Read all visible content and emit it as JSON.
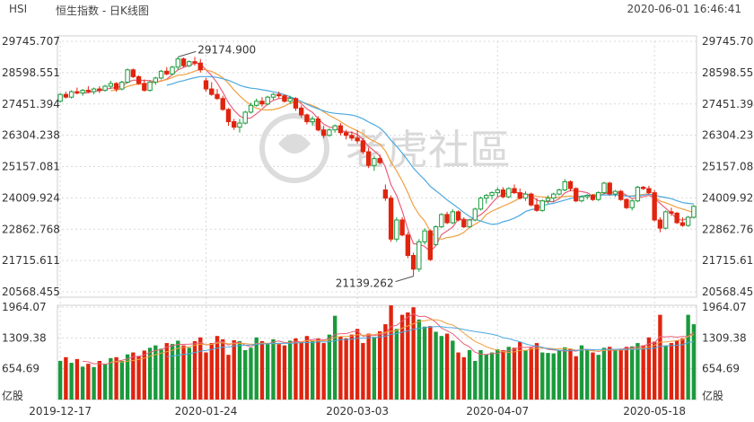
{
  "header": {
    "symbol": "HSI",
    "name": "恒生指数 - 日K线图",
    "timestamp": "2020-06-01 16:46:41"
  },
  "watermark": "老虎社區",
  "colors": {
    "up": "#1a9a3c",
    "down": "#e0240e",
    "ma5": "#e8607a",
    "ma10": "#f0a040",
    "ma20": "#4aa8e0",
    "grid": "#d8d8d8"
  },
  "chart_data": [
    {
      "type": "candlestick",
      "price_axis_labels": [
        "29745.707",
        "28598.551",
        "27451.394",
        "26304.238",
        "25157.081",
        "24009.924",
        "22862.768",
        "21715.611",
        "20568.455"
      ],
      "ylim": [
        20568.455,
        29745.707
      ],
      "date_labels": [
        "2019-12-17",
        "2020-01-24",
        "2020-03-03",
        "2020-04-07",
        "2020-05-18"
      ],
      "date_label_index": [
        0,
        26,
        53,
        78,
        106
      ],
      "annotations": [
        {
          "text": "29174.900",
          "type": "high"
        },
        {
          "text": "21139.262",
          "type": "low"
        }
      ],
      "ohlc": [
        [
          27550,
          27850,
          27500,
          27800
        ],
        [
          27800,
          27900,
          27650,
          27700
        ],
        [
          27700,
          27950,
          27650,
          27900
        ],
        [
          27900,
          28050,
          27800,
          27850
        ],
        [
          27850,
          28000,
          27750,
          27950
        ],
        [
          27950,
          28100,
          27850,
          27900
        ],
        [
          27900,
          28050,
          27800,
          28000
        ],
        [
          28000,
          28100,
          27850,
          27950
        ],
        [
          27950,
          28150,
          27900,
          28100
        ],
        [
          28100,
          28300,
          28000,
          28200
        ],
        [
          28200,
          28250,
          27900,
          28000
        ],
        [
          28000,
          28300,
          27950,
          28250
        ],
        [
          28250,
          28750,
          28200,
          28700
        ],
        [
          28700,
          28750,
          28400,
          28450
        ],
        [
          28450,
          28500,
          28150,
          28200
        ],
        [
          28200,
          28350,
          27900,
          27950
        ],
        [
          27950,
          28300,
          27900,
          28250
        ],
        [
          28250,
          28450,
          28150,
          28400
        ],
        [
          28400,
          28700,
          28350,
          28650
        ],
        [
          28650,
          28800,
          28500,
          28550
        ],
        [
          28550,
          28850,
          28500,
          28800
        ],
        [
          28800,
          29174.9,
          28700,
          29100
        ],
        [
          29100,
          29150,
          28800,
          28850
        ],
        [
          28850,
          29050,
          28800,
          29000
        ],
        [
          29000,
          29174.9,
          28850,
          28950
        ],
        [
          28950,
          29100,
          28600,
          28700
        ],
        [
          28300,
          28400,
          27900,
          28000
        ],
        [
          28000,
          28250,
          27750,
          27800
        ],
        [
          27800,
          28000,
          27600,
          27650
        ],
        [
          27650,
          27750,
          27200,
          27250
        ],
        [
          27250,
          27300,
          26650,
          26800
        ],
        [
          26800,
          26900,
          26500,
          26600
        ],
        [
          26600,
          26900,
          26400,
          26750
        ],
        [
          26750,
          27200,
          26700,
          27150
        ],
        [
          27150,
          27500,
          27100,
          27400
        ],
        [
          27400,
          27650,
          27350,
          27550
        ],
        [
          27550,
          27700,
          27350,
          27450
        ],
        [
          27450,
          27750,
          27400,
          27700
        ],
        [
          27700,
          27850,
          27600,
          27800
        ],
        [
          27800,
          27900,
          27650,
          27750
        ],
        [
          27750,
          27800,
          27500,
          27550
        ],
        [
          27550,
          27750,
          27450,
          27650
        ],
        [
          27650,
          27700,
          27200,
          27300
        ],
        [
          27300,
          27400,
          26950,
          27050
        ],
        [
          27050,
          27100,
          26700,
          26800
        ],
        [
          26800,
          27000,
          26650,
          26900
        ],
        [
          26900,
          27000,
          26450,
          26500
        ],
        [
          26500,
          26650,
          26200,
          26300
        ],
        [
          26300,
          26550,
          26250,
          26500
        ],
        [
          26500,
          26700,
          26400,
          26650
        ],
        [
          26650,
          26750,
          26300,
          26400
        ],
        [
          26400,
          26500,
          26150,
          26300
        ],
        [
          26300,
          26450,
          26100,
          26200
        ],
        [
          26200,
          26500,
          26000,
          26100
        ],
        [
          26100,
          26200,
          25600,
          25700
        ],
        [
          25700,
          25850,
          25100,
          25200
        ],
        [
          25200,
          25550,
          25000,
          25450
        ],
        [
          25450,
          25600,
          25250,
          25300
        ],
        [
          24300,
          24500,
          23900,
          24000
        ],
        [
          24000,
          24100,
          22400,
          22500
        ],
        [
          22500,
          23300,
          22400,
          23200
        ],
        [
          23200,
          23300,
          22600,
          22650
        ],
        [
          22650,
          22750,
          21800,
          21900
        ],
        [
          21900,
          22000,
          21139.262,
          21400
        ],
        [
          21400,
          22500,
          21300,
          22400
        ],
        [
          22400,
          22900,
          22300,
          22800
        ],
        [
          22800,
          22850,
          21700,
          21750
        ],
        [
          22300,
          23000,
          22250,
          22950
        ],
        [
          22950,
          23450,
          22900,
          23400
        ],
        [
          23400,
          23500,
          23050,
          23100
        ],
        [
          23100,
          23600,
          23050,
          23500
        ],
        [
          23500,
          23550,
          23150,
          23200
        ],
        [
          23200,
          23300,
          22900,
          22950
        ],
        [
          22950,
          23250,
          22900,
          23200
        ],
        [
          23200,
          23650,
          23150,
          23600
        ],
        [
          23600,
          24050,
          23550,
          24000
        ],
        [
          24000,
          24150,
          23800,
          24100
        ],
        [
          24100,
          24250,
          23950,
          24200
        ],
        [
          24200,
          24400,
          24050,
          24300
        ],
        [
          24300,
          24400,
          24000,
          24050
        ],
        [
          24050,
          24400,
          24000,
          24350
        ],
        [
          24350,
          24500,
          24150,
          24200
        ],
        [
          24200,
          24350,
          23950,
          24000
        ],
        [
          24000,
          24250,
          23900,
          24150
        ],
        [
          24150,
          24200,
          23700,
          23750
        ],
        [
          23750,
          24000,
          23500,
          23550
        ],
        [
          23550,
          23950,
          23500,
          23900
        ],
        [
          23900,
          24100,
          23800,
          24000
        ],
        [
          24000,
          24200,
          23850,
          24150
        ],
        [
          24150,
          24350,
          24100,
          24300
        ],
        [
          24300,
          24700,
          24250,
          24600
        ],
        [
          24600,
          24650,
          24250,
          24350
        ],
        [
          24350,
          24400,
          23850,
          23900
        ],
        [
          23900,
          24100,
          23850,
          24050
        ],
        [
          24050,
          24150,
          23950,
          24100
        ],
        [
          24100,
          24150,
          23900,
          23950
        ],
        [
          23950,
          24250,
          23900,
          24200
        ],
        [
          24200,
          24600,
          24150,
          24550
        ],
        [
          24550,
          24600,
          24100,
          24150
        ],
        [
          24150,
          24300,
          24050,
          24250
        ],
        [
          24250,
          24300,
          23900,
          23950
        ],
        [
          23950,
          24000,
          23600,
          23650
        ],
        [
          23650,
          23950,
          23550,
          23900
        ],
        [
          23900,
          24450,
          23850,
          24400
        ],
        [
          24400,
          24450,
          24300,
          24350
        ],
        [
          24350,
          24450,
          24150,
          24200
        ],
        [
          24200,
          24300,
          23150,
          23200
        ],
        [
          23200,
          23300,
          22750,
          22900
        ],
        [
          22900,
          23550,
          22850,
          23500
        ],
        [
          23500,
          23650,
          23350,
          23450
        ],
        [
          23450,
          23500,
          23050,
          23100
        ],
        [
          23100,
          23300,
          22950,
          23000
        ],
        [
          23000,
          23350,
          22950,
          23300
        ],
        [
          23300,
          23750,
          23250,
          23700
        ]
      ]
    },
    {
      "type": "bar",
      "title": "volume",
      "unit_label": "亿股",
      "volume_axis_labels": [
        "1964.07",
        "1309.38",
        "654.69"
      ],
      "ylim": [
        0,
        1964.07
      ],
      "values": [
        820,
        900,
        780,
        860,
        700,
        760,
        690,
        820,
        760,
        880,
        900,
        820,
        960,
        1000,
        920,
        1040,
        1100,
        1150,
        1080,
        1200,
        1180,
        1250,
        1150,
        1100,
        1240,
        1320,
        1000,
        1200,
        1350,
        1280,
        950,
        1260,
        1240,
        1050,
        1100,
        1320,
        1240,
        1180,
        1280,
        1200,
        1150,
        1250,
        1300,
        1230,
        1350,
        1250,
        1300,
        1200,
        1380,
        1780,
        1340,
        1300,
        1380,
        1500,
        1200,
        1400,
        1330,
        1450,
        1600,
        2000,
        1500,
        1800,
        1850,
        1960,
        1700,
        1550,
        1560,
        1440,
        1350,
        1400,
        1250,
        1000,
        900,
        1050,
        820,
        1050,
        960,
        1000,
        1070,
        1050,
        1120,
        1100,
        1220,
        1040,
        1100,
        1200,
        1000,
        990,
        980,
        1050,
        1110,
        1080,
        920,
        1150,
        1070,
        1000,
        950,
        1100,
        1120,
        1050,
        1080,
        1120,
        1130,
        1200,
        1150,
        1320,
        1230,
        1800,
        1150,
        1200,
        1250,
        1300,
        1800,
        1600
      ]
    }
  ]
}
